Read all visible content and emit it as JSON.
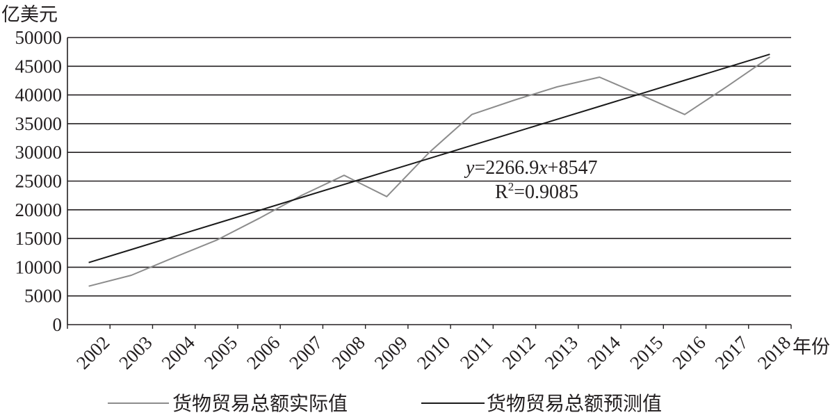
{
  "chart_data": {
    "type": "line",
    "title": "",
    "ylabel": "亿美元",
    "xlabel": "年份",
    "ylim": [
      0,
      50000
    ],
    "yticks": [
      "0",
      "5000",
      "10000",
      "15000",
      "20000",
      "25000",
      "30000",
      "35000",
      "40000",
      "45000",
      "50000"
    ],
    "categories": [
      "2002",
      "2003",
      "2004",
      "2005",
      "2006",
      "2007",
      "2008",
      "2009",
      "2010",
      "2011",
      "2012",
      "2013",
      "2014",
      "2015",
      "2016",
      "2017",
      "2018"
    ],
    "grid": true,
    "legend": "bottom",
    "series": [
      {
        "name": "货物贸易总额实际值",
        "color": "#8c8c8c",
        "values": [
          6700,
          8600,
          11700,
          14700,
          18500,
          22500,
          26000,
          22300,
          30000,
          36600,
          39100,
          41400,
          43100,
          39900,
          36600,
          41500,
          46600
        ]
      },
      {
        "name": "货物贸易总额预测值",
        "color": "#1a1a1a",
        "values": [
          10814,
          13081,
          15348,
          17615,
          19882,
          22149,
          24415,
          26682,
          28949,
          31216,
          33483,
          35750,
          38017,
          40284,
          42551,
          44818,
          47085
        ]
      }
    ],
    "annotation": {
      "equation_prefix": "y",
      "equation_mid": "=2266.9",
      "equation_var": "x",
      "equation_suffix": "+8547",
      "r2_base": "R",
      "r2_sup": "2",
      "r2_value": "=0.9085"
    }
  }
}
